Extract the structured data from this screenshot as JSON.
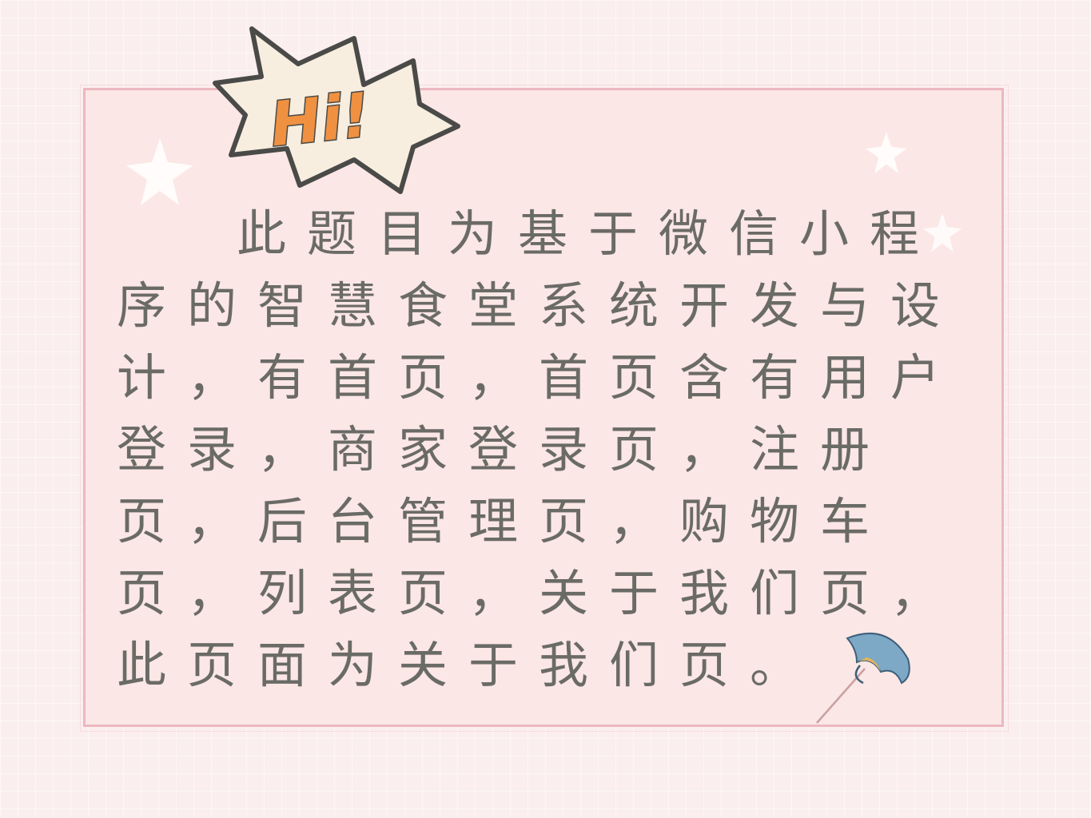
{
  "badge": {
    "text": "Hi!",
    "fill_color": "#f7eedf",
    "outline_color": "#4a4a48",
    "letter_color": "#ef9140"
  },
  "content": {
    "paragraph": "此题目为基于微信小程序的智慧食堂系统开发与设计，有首页，首页含有用户登录，商家登录页，注册页，后台管理页，购物车页，列表页，关于我们页，此页面为关于我们页。"
  },
  "colors": {
    "background": "#fbeeee",
    "card_fill": "#fbe7e5",
    "card_border": "#ecb8c0",
    "text": "#6b6b66"
  },
  "decorations": {
    "stars": [
      "star-icon",
      "star-icon",
      "star-icon"
    ],
    "umbrella": "umbrella-icon"
  }
}
